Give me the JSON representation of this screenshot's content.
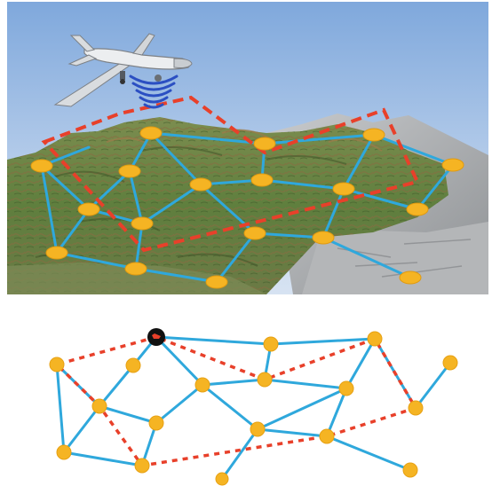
{
  "colors": {
    "sky_top": "#7fa8dc",
    "sky_bottom": "#c9dbef",
    "terrain_green": "#5f7f3e",
    "terrain_brown": "#8a6a45",
    "rock_gray": "#a9abad",
    "link_blue": "#2fa8dc",
    "route_red": "#e8402a",
    "node_yellow": "#f5b423",
    "uav_body": "#e9ebee",
    "signal_blue": "#2b4fc2",
    "sink_black": "#111111",
    "sink_mark": "#e8402a"
  },
  "icons": {
    "uav": "uav-drone-icon",
    "signal": "wireless-signal-icon",
    "sink": "sink-node-icon"
  }
}
